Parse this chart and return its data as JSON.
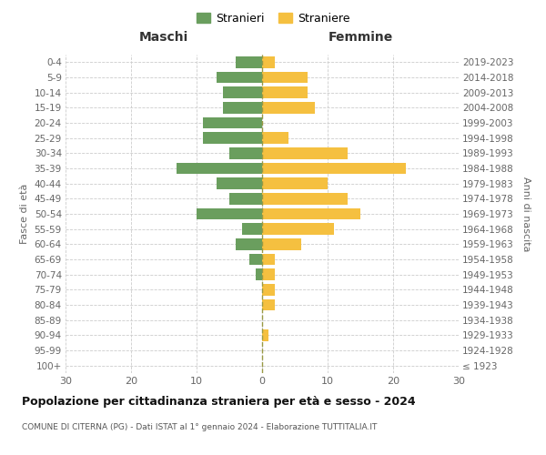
{
  "age_groups": [
    "100+",
    "95-99",
    "90-94",
    "85-89",
    "80-84",
    "75-79",
    "70-74",
    "65-69",
    "60-64",
    "55-59",
    "50-54",
    "45-49",
    "40-44",
    "35-39",
    "30-34",
    "25-29",
    "20-24",
    "15-19",
    "10-14",
    "5-9",
    "0-4"
  ],
  "birth_years": [
    "≤ 1923",
    "1924-1928",
    "1929-1933",
    "1934-1938",
    "1939-1943",
    "1944-1948",
    "1949-1953",
    "1954-1958",
    "1959-1963",
    "1964-1968",
    "1969-1973",
    "1974-1978",
    "1979-1983",
    "1984-1988",
    "1989-1993",
    "1994-1998",
    "1999-2003",
    "2004-2008",
    "2009-2013",
    "2014-2018",
    "2019-2023"
  ],
  "males": [
    0,
    0,
    0,
    0,
    0,
    0,
    1,
    2,
    4,
    3,
    10,
    5,
    7,
    13,
    5,
    9,
    9,
    6,
    6,
    7,
    4
  ],
  "females": [
    0,
    0,
    1,
    0,
    2,
    2,
    2,
    2,
    6,
    11,
    15,
    13,
    10,
    22,
    13,
    4,
    0,
    8,
    7,
    7,
    2
  ],
  "male_color": "#6a9e5e",
  "female_color": "#f5c040",
  "bar_height": 0.75,
  "xlim": 30,
  "title": "Popolazione per cittadinanza straniera per età e sesso - 2024",
  "subtitle": "COMUNE DI CITERNA (PG) - Dati ISTAT al 1° gennaio 2024 - Elaborazione TUTTITALIA.IT",
  "xlabel_left": "Maschi",
  "xlabel_right": "Femmine",
  "ylabel_left": "Fasce di età",
  "ylabel_right": "Anni di nascita",
  "legend_male": "Stranieri",
  "legend_female": "Straniere",
  "background_color": "#ffffff",
  "grid_color": "#cccccc"
}
